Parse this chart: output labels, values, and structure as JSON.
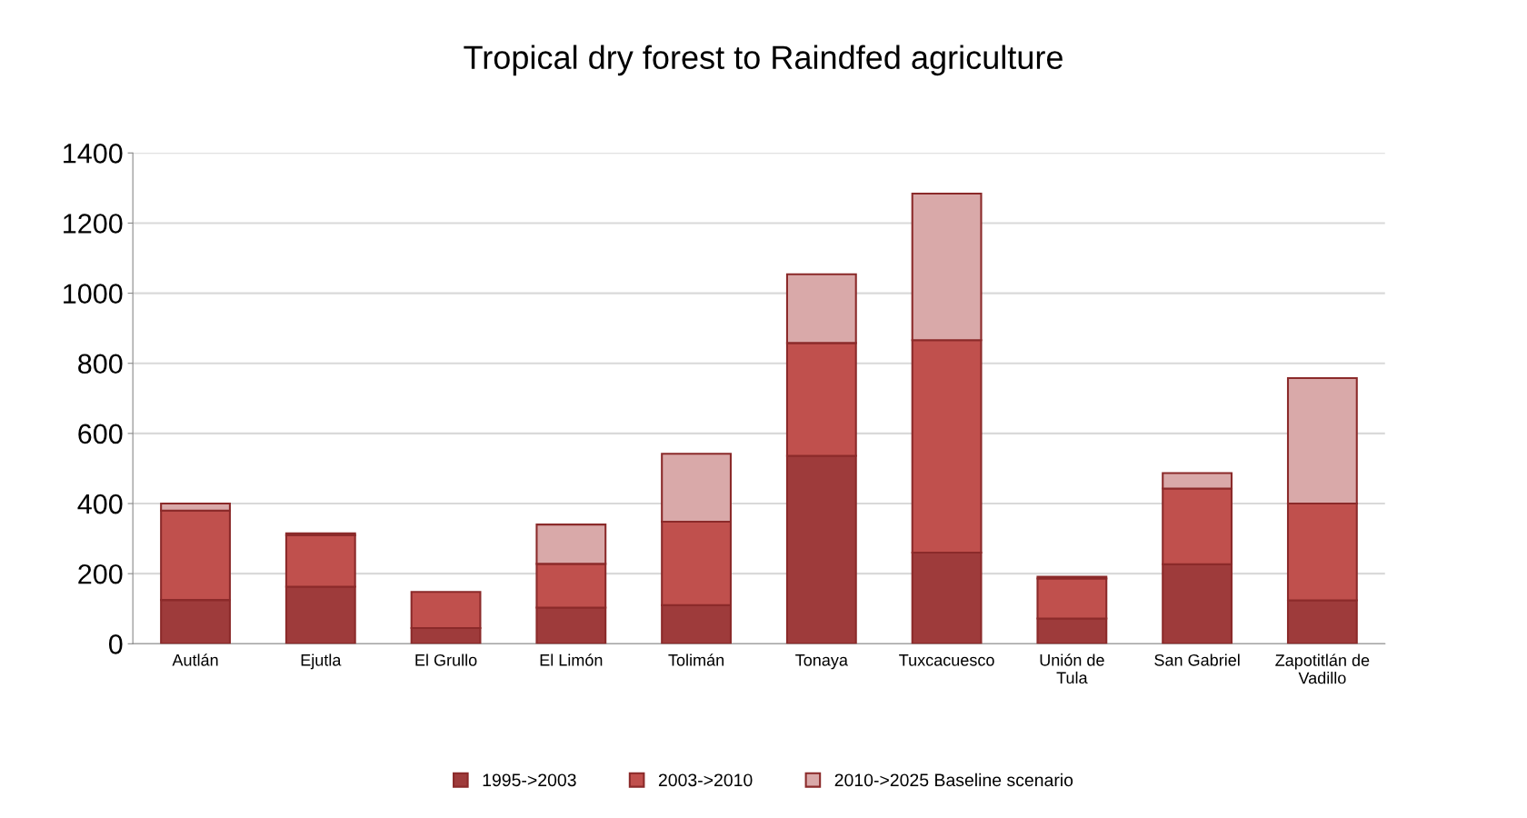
{
  "chart_data": {
    "type": "bar",
    "title": "Tropical dry forest to Raindfed agriculture",
    "stacked": true,
    "categories": [
      "Autlán",
      "Ejutla",
      "El Grullo",
      "El Limón",
      "Tolimán",
      "Tonaya",
      "Tuxcacuesco",
      "Unión de\nTula",
      "San Gabriel",
      "Zapotitlán de\nVadillo"
    ],
    "series": [
      {
        "name": "1995->2003",
        "color": "#9e3b3b",
        "values": [
          125,
          163,
          45,
          103,
          110,
          536,
          260,
          72,
          227,
          124
        ]
      },
      {
        "name": "2003->2010",
        "color": "#c0504d",
        "values": [
          255,
          147,
          103,
          125,
          238,
          322,
          606,
          114,
          216,
          276
        ]
      },
      {
        "name": "2010->2025 Baseline scenario",
        "color": "#d9a9a9",
        "values": [
          20,
          5,
          null,
          112,
          194,
          196,
          418,
          5,
          44,
          358
        ]
      }
    ],
    "ylim": [
      0,
      1400
    ],
    "yticks": [
      0,
      200,
      400,
      600,
      800,
      1000,
      1200,
      1400
    ],
    "grid": "y",
    "legend": "bottom"
  }
}
